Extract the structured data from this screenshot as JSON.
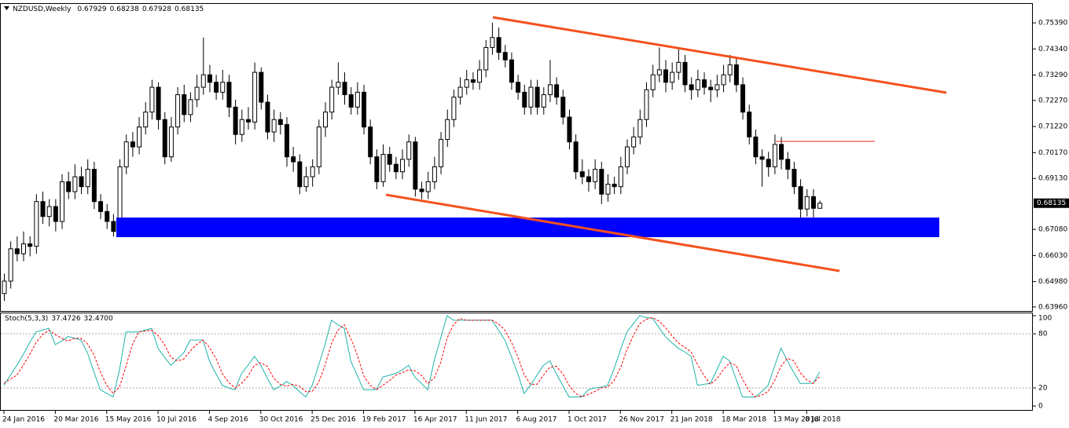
{
  "chart_data": {
    "type": "candlestick",
    "title": "NZDUSD,Weekly",
    "categories": [
      "24 Jan 2016",
      null,
      null,
      null,
      null,
      null,
      null,
      null,
      "20 Mar 2016",
      null,
      null,
      null,
      null,
      null,
      null,
      null,
      "15 May 2016",
      null,
      null,
      null,
      null,
      null,
      null,
      null,
      "10 Jul 2016",
      null,
      null,
      null,
      null,
      null,
      null,
      null,
      "4 Sep 2016",
      null,
      null,
      null,
      null,
      null,
      null,
      null,
      "30 Oct 2016",
      null,
      null,
      null,
      null,
      null,
      null,
      null,
      "25 Dec 2016",
      null,
      null,
      null,
      null,
      null,
      null,
      null,
      "19 Feb 2017",
      null,
      null,
      null,
      null,
      null,
      null,
      null,
      "16 Apr 2017",
      null,
      null,
      null,
      null,
      null,
      null,
      null,
      "11 Jun 2017",
      null,
      null,
      null,
      null,
      null,
      null,
      null,
      "6 Aug 2017",
      null,
      null,
      null,
      null,
      null,
      null,
      null,
      "1 Oct 2017",
      null,
      null,
      null,
      null,
      null,
      null,
      null,
      "26 Nov 2017",
      null,
      null,
      null,
      null,
      null,
      null,
      null,
      "21 Jan 2018",
      null,
      null,
      null,
      null,
      null,
      null,
      null,
      "18 Mar 2018",
      null,
      null,
      null,
      null,
      null,
      null,
      null,
      "13 May 2018",
      null,
      null,
      null,
      null,
      "8 Jul 2018",
      null,
      null
    ],
    "ohlc": [
      [
        0.645,
        0.653,
        0.642,
        0.65
      ],
      [
        0.65,
        0.666,
        0.647,
        0.663
      ],
      [
        0.663,
        0.668,
        0.658,
        0.661
      ],
      [
        0.661,
        0.67,
        0.658,
        0.665
      ],
      [
        0.665,
        0.668,
        0.66,
        0.664
      ],
      [
        0.664,
        0.685,
        0.661,
        0.682
      ],
      [
        0.682,
        0.686,
        0.673,
        0.676
      ],
      [
        0.676,
        0.683,
        0.672,
        0.68
      ],
      [
        0.68,
        0.683,
        0.67,
        0.674
      ],
      [
        0.674,
        0.693,
        0.671,
        0.69
      ],
      [
        0.69,
        0.694,
        0.683,
        0.686
      ],
      [
        0.686,
        0.697,
        0.683,
        0.692
      ],
      [
        0.692,
        0.696,
        0.685,
        0.688
      ],
      [
        0.688,
        0.699,
        0.685,
        0.695
      ],
      [
        0.695,
        0.698,
        0.679,
        0.682
      ],
      [
        0.682,
        0.685,
        0.675,
        0.678
      ],
      [
        0.678,
        0.681,
        0.671,
        0.674
      ],
      [
        0.674,
        0.677,
        0.668,
        0.67
      ],
      [
        0.67,
        0.699,
        0.668,
        0.696
      ],
      [
        0.696,
        0.709,
        0.693,
        0.706
      ],
      [
        0.706,
        0.71,
        0.7,
        0.704
      ],
      [
        0.704,
        0.716,
        0.701,
        0.712
      ],
      [
        0.712,
        0.722,
        0.709,
        0.718
      ],
      [
        0.718,
        0.731,
        0.715,
        0.728
      ],
      [
        0.728,
        0.73,
        0.711,
        0.715
      ],
      [
        0.715,
        0.718,
        0.697,
        0.7
      ],
      [
        0.7,
        0.716,
        0.698,
        0.712
      ],
      [
        0.712,
        0.728,
        0.709,
        0.725
      ],
      [
        0.725,
        0.729,
        0.714,
        0.717
      ],
      [
        0.717,
        0.726,
        0.714,
        0.723
      ],
      [
        0.723,
        0.733,
        0.72,
        0.728
      ],
      [
        0.728,
        0.748,
        0.725,
        0.733
      ],
      [
        0.733,
        0.737,
        0.726,
        0.73
      ],
      [
        0.73,
        0.733,
        0.723,
        0.726
      ],
      [
        0.726,
        0.735,
        0.723,
        0.73
      ],
      [
        0.73,
        0.733,
        0.716,
        0.72
      ],
      [
        0.72,
        0.723,
        0.705,
        0.709
      ],
      [
        0.709,
        0.719,
        0.706,
        0.715
      ],
      [
        0.715,
        0.72,
        0.711,
        0.714
      ],
      [
        0.714,
        0.738,
        0.711,
        0.734
      ],
      [
        0.734,
        0.736,
        0.719,
        0.722
      ],
      [
        0.722,
        0.725,
        0.707,
        0.71
      ],
      [
        0.71,
        0.719,
        0.706,
        0.715
      ],
      [
        0.715,
        0.718,
        0.709,
        0.713
      ],
      [
        0.713,
        0.716,
        0.696,
        0.7
      ],
      [
        0.7,
        0.704,
        0.694,
        0.698
      ],
      [
        0.698,
        0.701,
        0.685,
        0.688
      ],
      [
        0.688,
        0.696,
        0.686,
        0.692
      ],
      [
        0.692,
        0.699,
        0.688,
        0.696
      ],
      [
        0.696,
        0.715,
        0.693,
        0.712
      ],
      [
        0.712,
        0.722,
        0.708,
        0.718
      ],
      [
        0.718,
        0.731,
        0.715,
        0.728
      ],
      [
        0.728,
        0.738,
        0.725,
        0.73
      ],
      [
        0.73,
        0.734,
        0.721,
        0.725
      ],
      [
        0.725,
        0.728,
        0.717,
        0.72
      ],
      [
        0.72,
        0.73,
        0.717,
        0.726
      ],
      [
        0.726,
        0.729,
        0.709,
        0.712
      ],
      [
        0.712,
        0.715,
        0.697,
        0.7
      ],
      [
        0.7,
        0.703,
        0.687,
        0.69
      ],
      [
        0.69,
        0.705,
        0.688,
        0.701
      ],
      [
        0.701,
        0.704,
        0.694,
        0.697
      ],
      [
        0.697,
        0.7,
        0.691,
        0.694
      ],
      [
        0.694,
        0.703,
        0.691,
        0.699
      ],
      [
        0.699,
        0.709,
        0.696,
        0.706
      ],
      [
        0.706,
        0.708,
        0.684,
        0.687
      ],
      [
        0.687,
        0.69,
        0.683,
        0.686
      ],
      [
        0.686,
        0.694,
        0.683,
        0.69
      ],
      [
        0.69,
        0.7,
        0.687,
        0.696
      ],
      [
        0.696,
        0.71,
        0.693,
        0.707
      ],
      [
        0.707,
        0.719,
        0.704,
        0.715
      ],
      [
        0.715,
        0.727,
        0.712,
        0.724
      ],
      [
        0.724,
        0.732,
        0.721,
        0.728
      ],
      [
        0.728,
        0.735,
        0.725,
        0.731
      ],
      [
        0.731,
        0.734,
        0.727,
        0.73
      ],
      [
        0.73,
        0.739,
        0.727,
        0.735
      ],
      [
        0.735,
        0.747,
        0.732,
        0.744
      ],
      [
        0.744,
        0.754,
        0.741,
        0.748
      ],
      [
        0.748,
        0.752,
        0.739,
        0.742
      ],
      [
        0.742,
        0.745,
        0.736,
        0.739
      ],
      [
        0.739,
        0.742,
        0.727,
        0.73
      ],
      [
        0.73,
        0.733,
        0.723,
        0.726
      ],
      [
        0.726,
        0.729,
        0.717,
        0.72
      ],
      [
        0.72,
        0.731,
        0.717,
        0.728
      ],
      [
        0.728,
        0.731,
        0.717,
        0.72
      ],
      [
        0.72,
        0.728,
        0.717,
        0.725
      ],
      [
        0.725,
        0.739,
        0.722,
        0.729
      ],
      [
        0.729,
        0.732,
        0.721,
        0.724
      ],
      [
        0.724,
        0.727,
        0.713,
        0.716
      ],
      [
        0.716,
        0.719,
        0.703,
        0.706
      ],
      [
        0.706,
        0.709,
        0.691,
        0.694
      ],
      [
        0.694,
        0.699,
        0.689,
        0.692
      ],
      [
        0.692,
        0.695,
        0.686,
        0.69
      ],
      [
        0.69,
        0.699,
        0.687,
        0.695
      ],
      [
        0.695,
        0.698,
        0.681,
        0.685
      ],
      [
        0.685,
        0.693,
        0.682,
        0.689
      ],
      [
        0.689,
        0.692,
        0.685,
        0.688
      ],
      [
        0.688,
        0.7,
        0.685,
        0.696
      ],
      [
        0.696,
        0.707,
        0.693,
        0.704
      ],
      [
        0.704,
        0.712,
        0.701,
        0.708
      ],
      [
        0.708,
        0.719,
        0.705,
        0.715
      ],
      [
        0.715,
        0.73,
        0.712,
        0.727
      ],
      [
        0.727,
        0.737,
        0.724,
        0.733
      ],
      [
        0.733,
        0.744,
        0.73,
        0.735
      ],
      [
        0.735,
        0.739,
        0.726,
        0.73
      ],
      [
        0.73,
        0.738,
        0.727,
        0.734
      ],
      [
        0.734,
        0.744,
        0.731,
        0.738
      ],
      [
        0.738,
        0.741,
        0.726,
        0.729
      ],
      [
        0.729,
        0.732,
        0.723,
        0.727
      ],
      [
        0.727,
        0.735,
        0.724,
        0.731
      ],
      [
        0.731,
        0.734,
        0.725,
        0.728
      ],
      [
        0.728,
        0.731,
        0.722,
        0.727
      ],
      [
        0.727,
        0.733,
        0.724,
        0.729
      ],
      [
        0.729,
        0.737,
        0.726,
        0.733
      ],
      [
        0.733,
        0.741,
        0.73,
        0.737
      ],
      [
        0.737,
        0.74,
        0.726,
        0.729
      ],
      [
        0.729,
        0.732,
        0.715,
        0.718
      ],
      [
        0.718,
        0.721,
        0.705,
        0.708
      ],
      [
        0.708,
        0.711,
        0.697,
        0.7
      ],
      [
        0.7,
        0.703,
        0.688,
        0.699
      ],
      [
        0.699,
        0.702,
        0.692,
        0.696
      ],
      [
        0.696,
        0.709,
        0.693,
        0.705
      ],
      [
        0.705,
        0.708,
        0.695,
        0.699
      ],
      [
        0.699,
        0.702,
        0.691,
        0.695
      ],
      [
        0.695,
        0.698,
        0.685,
        0.688
      ],
      [
        0.688,
        0.691,
        0.67,
        0.679
      ],
      [
        0.679,
        0.687,
        0.676,
        0.684
      ],
      [
        0.684,
        0.687,
        0.672,
        0.6793
      ],
      [
        0.67929,
        0.68238,
        0.67928,
        0.68135
      ]
    ],
    "ylim": [
      0.6383,
      0.7612
    ],
    "yticks": [
      {
        "value": 0.7539,
        "label": "0.75390"
      },
      {
        "value": 0.7434,
        "label": "0.74340"
      },
      {
        "value": 0.7329,
        "label": "0.73290"
      },
      {
        "value": 0.7227,
        "label": "0.72270"
      },
      {
        "value": 0.7122,
        "label": "0.71220"
      },
      {
        "value": 0.7017,
        "label": "0.70170"
      },
      {
        "value": 0.6913,
        "label": "0.69130"
      },
      {
        "value": 0.6708,
        "label": "0.67080"
      },
      {
        "value": 0.6603,
        "label": "0.66030"
      },
      {
        "value": 0.6498,
        "label": "0.64980"
      },
      {
        "value": 0.6396,
        "label": "0.63960"
      }
    ],
    "up_color": "#ffffff",
    "down_color": "#000000",
    "stoch": {
      "label": "Stoch(5,3,3)",
      "k_last_label": "37.4726",
      "d_last_label": "32.4700",
      "k_color": "#20b2aa",
      "d_color": "#ff0000",
      "ylim": [
        0,
        100
      ],
      "yticks": [
        0,
        20,
        80,
        100
      ],
      "levels": [
        20,
        80
      ],
      "k": [
        23,
        34,
        45,
        57,
        70,
        82,
        84,
        86,
        68,
        72,
        77,
        75,
        73,
        59,
        38,
        18,
        14,
        10,
        40,
        82,
        82,
        82,
        84,
        86,
        64,
        54,
        45,
        52,
        59,
        73,
        73,
        73,
        50,
        36,
        23,
        20,
        18,
        36,
        45,
        55,
        45,
        31,
        18,
        22,
        27,
        23,
        16,
        10,
        23,
        45,
        68,
        95,
        90,
        86,
        50,
        34,
        18,
        18,
        18,
        32,
        34,
        36,
        40,
        45,
        32,
        25,
        18,
        50,
        75,
        100,
        95,
        95,
        95,
        95,
        95,
        95,
        95,
        84,
        73,
        55,
        36,
        14,
        23,
        34,
        45,
        50,
        36,
        23,
        10,
        10,
        10,
        18,
        20,
        21,
        23,
        41,
        62,
        82,
        91,
        100,
        98,
        97,
        87,
        77,
        70,
        64,
        60,
        55,
        23,
        24,
        25,
        40,
        55,
        50,
        30,
        10,
        10,
        10,
        16,
        23,
        44,
        64,
        50,
        37,
        25,
        25,
        25,
        37.4726
      ],
      "d": [
        25,
        30,
        34,
        45,
        57,
        70,
        79,
        84,
        79,
        75,
        72,
        75,
        75,
        69,
        57,
        38,
        23,
        14,
        21,
        44,
        68,
        82,
        83,
        84,
        78,
        68,
        54,
        50,
        52,
        61,
        68,
        73,
        65,
        53,
        36,
        26,
        20,
        25,
        33,
        45,
        48,
        44,
        31,
        24,
        22,
        24,
        22,
        16,
        16,
        26,
        45,
        69,
        84,
        90,
        75,
        57,
        34,
        23,
        18,
        23,
        28,
        34,
        37,
        40,
        39,
        34,
        25,
        31,
        48,
        75,
        90,
        97,
        95,
        95,
        95,
        95,
        95,
        91,
        84,
        71,
        55,
        35,
        24,
        24,
        34,
        43,
        44,
        36,
        23,
        14,
        10,
        13,
        16,
        20,
        21,
        28,
        42,
        62,
        78,
        91,
        96,
        98,
        94,
        87,
        78,
        70,
        65,
        60,
        46,
        34,
        24,
        30,
        40,
        48,
        45,
        30,
        17,
        10,
        12,
        16,
        28,
        44,
        53,
        50,
        37,
        29,
        25,
        32.47
      ]
    }
  }
}
